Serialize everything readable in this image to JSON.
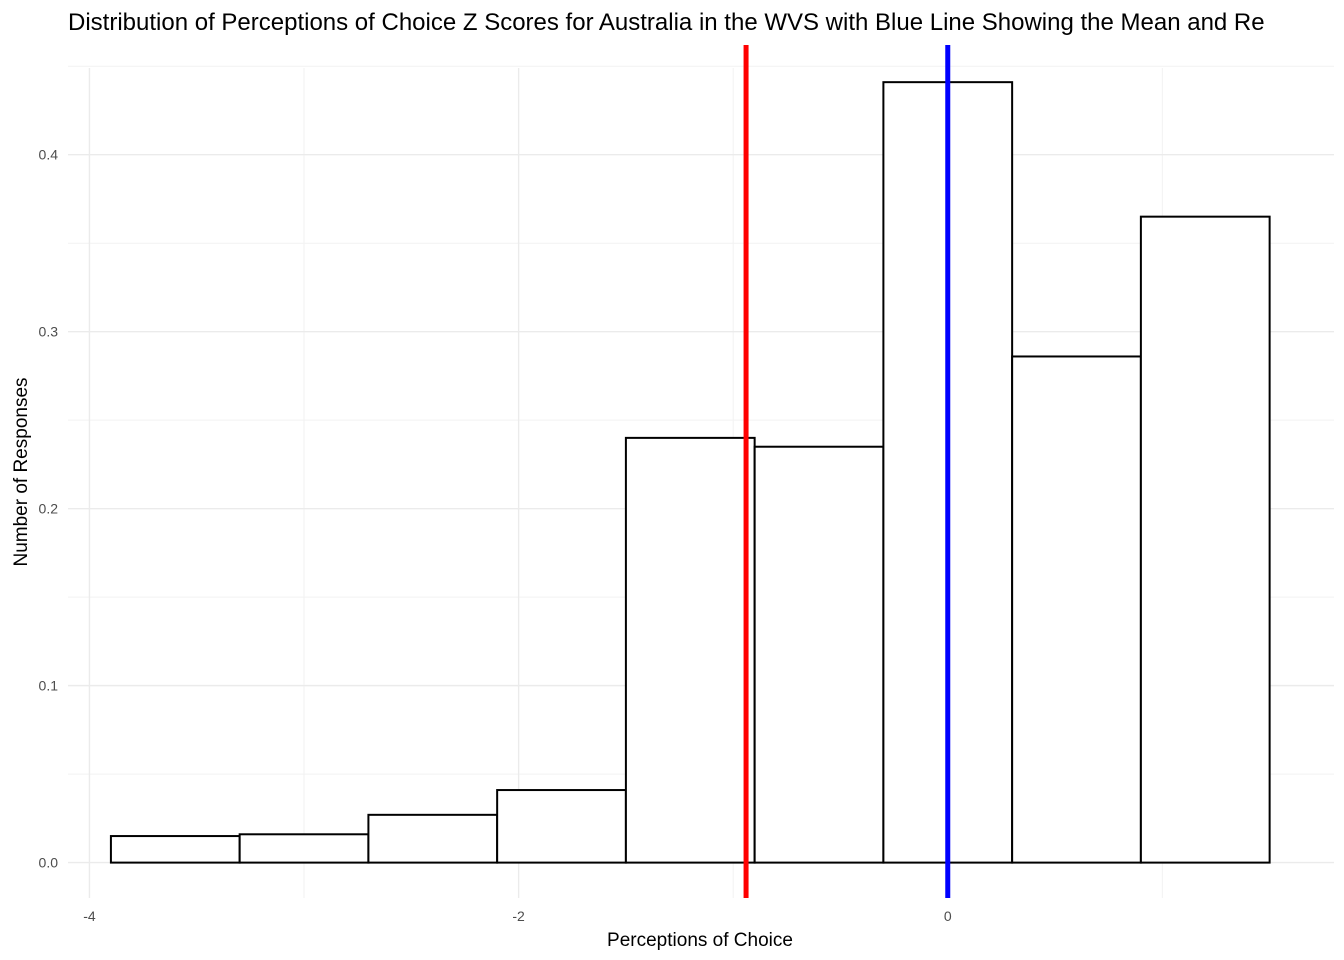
{
  "chart_data": {
    "type": "bar",
    "title": "Distribution of Perceptions of Choice Z Scores for Australia in the WVS with Blue Line Showing the Mean and Re",
    "xlabel": "Perceptions of Choice",
    "ylabel": "Number of Responses",
    "xlim": [
      -4.1,
      1.8
    ],
    "ylim": [
      -0.02,
      0.462
    ],
    "grid": true,
    "x_ticks": [
      -4,
      -2,
      0
    ],
    "x_tick_labels": [
      "-4",
      "-2",
      "0"
    ],
    "y_ticks": [
      0.0,
      0.1,
      0.2,
      0.3,
      0.4
    ],
    "y_tick_labels": [
      "0.0",
      "0.1",
      "0.2",
      "0.3",
      "0.4"
    ],
    "bins": [
      {
        "x_start": -3.9,
        "x_end": -3.3,
        "value": 0.015
      },
      {
        "x_start": -3.3,
        "x_end": -2.7,
        "value": 0.016
      },
      {
        "x_start": -2.7,
        "x_end": -2.1,
        "value": 0.027
      },
      {
        "x_start": -2.1,
        "x_end": -1.5,
        "value": 0.041
      },
      {
        "x_start": -1.5,
        "x_end": -0.9,
        "value": 0.24
      },
      {
        "x_start": -0.9,
        "x_end": -0.3,
        "value": 0.235
      },
      {
        "x_start": -0.3,
        "x_end": 0.3,
        "value": 0.441
      },
      {
        "x_start": 0.3,
        "x_end": 0.9,
        "value": 0.286
      },
      {
        "x_start": 0.9,
        "x_end": 1.5,
        "value": 0.365
      }
    ],
    "bar_fill": "#ffffff",
    "bar_stroke": "#000000",
    "reference_lines": [
      {
        "x": -0.94,
        "color": "#ff0000"
      },
      {
        "x": 0.0,
        "color": "#0000ff"
      }
    ]
  }
}
